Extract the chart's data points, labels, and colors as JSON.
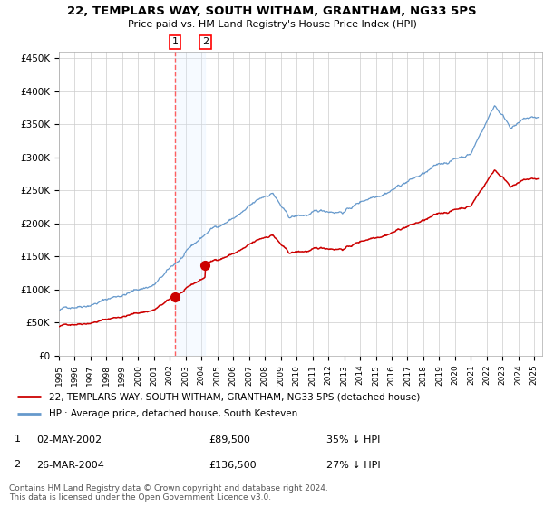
{
  "title": "22, TEMPLARS WAY, SOUTH WITHAM, GRANTHAM, NG33 5PS",
  "subtitle": "Price paid vs. HM Land Registry's House Price Index (HPI)",
  "background_color": "#ffffff",
  "grid_color": "#cccccc",
  "red_line_color": "#cc0000",
  "blue_line_color": "#6699cc",
  "sale1_date_num": 2002.33,
  "sale1_price": 89500,
  "sale2_date_num": 2004.23,
  "sale2_price": 136500,
  "legend_entry1": "22, TEMPLARS WAY, SOUTH WITHAM, GRANTHAM, NG33 5PS (detached house)",
  "legend_entry2": "HPI: Average price, detached house, South Kesteven",
  "table_row1": [
    "1",
    "02-MAY-2002",
    "£89,500",
    "35% ↓ HPI"
  ],
  "table_row2": [
    "2",
    "26-MAR-2004",
    "£136,500",
    "27% ↓ HPI"
  ],
  "footer": "Contains HM Land Registry data © Crown copyright and database right 2024.\nThis data is licensed under the Open Government Licence v3.0.",
  "xmin": 1995.0,
  "xmax": 2025.5,
  "ymin": 0,
  "ymax": 460000,
  "yticks": [
    0,
    50000,
    100000,
    150000,
    200000,
    250000,
    300000,
    350000,
    400000,
    450000
  ],
  "ytick_labels": [
    "£0",
    "£50K",
    "£100K",
    "£150K",
    "£200K",
    "£250K",
    "£300K",
    "£350K",
    "£400K",
    "£450K"
  ],
  "xticks": [
    1995,
    1996,
    1997,
    1998,
    1999,
    2000,
    2001,
    2002,
    2003,
    2004,
    2005,
    2006,
    2007,
    2008,
    2009,
    2010,
    2011,
    2012,
    2013,
    2014,
    2015,
    2016,
    2017,
    2018,
    2019,
    2020,
    2021,
    2022,
    2023,
    2024,
    2025
  ],
  "shade_x1": 2002.33,
  "shade_x2": 2004.23,
  "dashed_line_x": 2002.33,
  "marker_color": "#cc0000",
  "shade_color": "#ddeeff",
  "dashed_color": "#ff4444"
}
